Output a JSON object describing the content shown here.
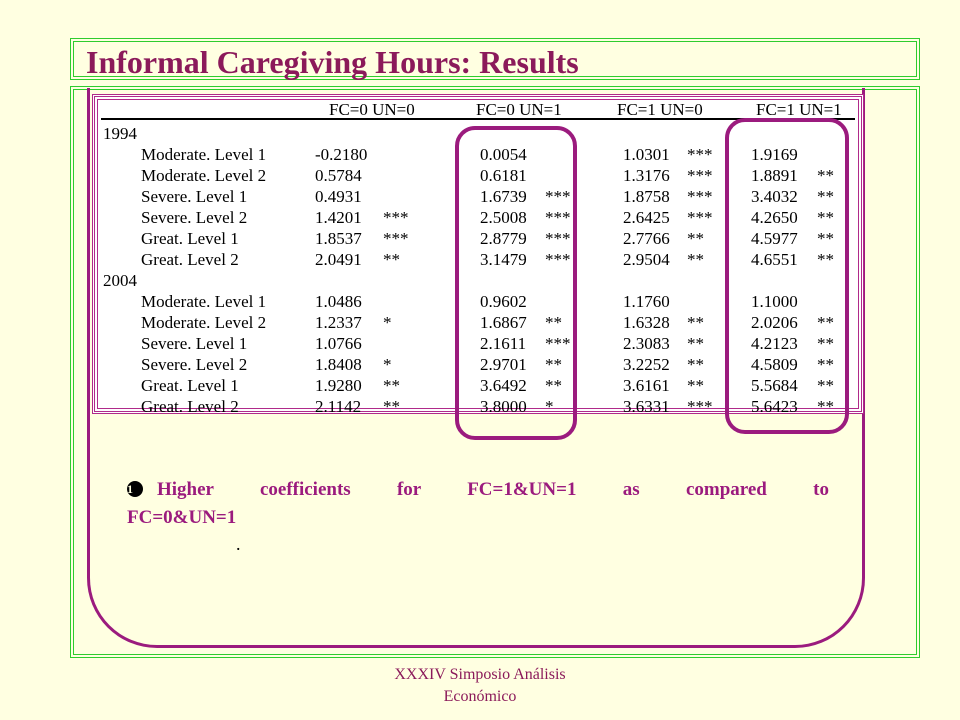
{
  "title": "Informal Caregiving Hours: Results",
  "table": {
    "headers": [
      "FC=0 UN=0",
      "FC=0 UN=1",
      "FC=1 UN=0",
      "FC=1 UN=1"
    ],
    "groups": [
      {
        "year": "1994",
        "rows": [
          {
            "label": "Moderate. Level 1",
            "c1": "-0.2180",
            "s1": "",
            "c2": "0.0054",
            "s2": "",
            "c3": "1.0301",
            "s3": "***",
            "c4": "1.9169",
            "s4": ""
          },
          {
            "label": "Moderate. Level 2",
            "c1": "0.5784",
            "s1": "",
            "c2": "0.6181",
            "s2": "",
            "c3": "1.3176",
            "s3": "***",
            "c4": "1.8891",
            "s4": "**"
          },
          {
            "label": "Severe. Level 1",
            "c1": "0.4931",
            "s1": "",
            "c2": "1.6739",
            "s2": "***",
            "c3": "1.8758",
            "s3": "***",
            "c4": "3.4032",
            "s4": "**"
          },
          {
            "label": "Severe. Level 2",
            "c1": "1.4201",
            "s1": "***",
            "c2": "2.5008",
            "s2": "***",
            "c3": "2.6425",
            "s3": "***",
            "c4": "4.2650",
            "s4": "**"
          },
          {
            "label": "Great. Level 1",
            "c1": "1.8537",
            "s1": "***",
            "c2": "2.8779",
            "s2": "***",
            "c3": "2.7766",
            "s3": "**",
            "c4": "4.5977",
            "s4": "**"
          },
          {
            "label": "Great. Level 2",
            "c1": "2.0491",
            "s1": "**",
            "c2": "3.1479",
            "s2": "***",
            "c3": "2.9504",
            "s3": "**",
            "c4": "4.6551",
            "s4": "**"
          }
        ]
      },
      {
        "year": "2004",
        "rows": [
          {
            "label": "Moderate. Level 1",
            "c1": "1.0486",
            "s1": "",
            "c2": "0.9602",
            "s2": "",
            "c3": "1.1760",
            "s3": "",
            "c4": "1.1000",
            "s4": ""
          },
          {
            "label": "Moderate. Level 2",
            "c1": "1.2337",
            "s1": "*",
            "c2": "1.6867",
            "s2": "**",
            "c3": "1.6328",
            "s3": "**",
            "c4": "2.0206",
            "s4": "**"
          },
          {
            "label": "Severe. Level 1",
            "c1": "1.0766",
            "s1": "",
            "c2": "2.1611",
            "s2": "***",
            "c3": "2.3083",
            "s3": "**",
            "c4": "4.2123",
            "s4": "**"
          },
          {
            "label": "Severe. Level 2",
            "c1": "1.8408",
            "s1": "*",
            "c2": "2.9701",
            "s2": "**",
            "c3": "3.2252",
            "s3": "**",
            "c4": "4.5809",
            "s4": "**"
          },
          {
            "label": "Great. Level 1",
            "c1": "1.9280",
            "s1": "**",
            "c2": "3.6492",
            "s2": "**",
            "c3": "3.6161",
            "s3": "**",
            "c4": "5.5684",
            "s4": "**"
          },
          {
            "label": "Great. Level 2",
            "c1": "2.1142",
            "s1": "**",
            "c2": "3.8000",
            "s2": "*",
            "c3": "3.6331",
            "s3": "***",
            "c4": "5.6423",
            "s4": "**"
          }
        ]
      }
    ]
  },
  "bullet": {
    "icon": "bullet-1-icon",
    "line1": "Higher coefficients for FC=1&UN=1 as compared to",
    "line2": "FC=0&UN=1",
    "dot": "."
  },
  "footer": {
    "line1": "XXXIV Simposio Análisis",
    "line2": "Económico"
  },
  "colors": {
    "frame": "#2ecc2e",
    "accent": "#9b1b7e",
    "title": "#8b1a5a",
    "background": "#ffffe1"
  }
}
